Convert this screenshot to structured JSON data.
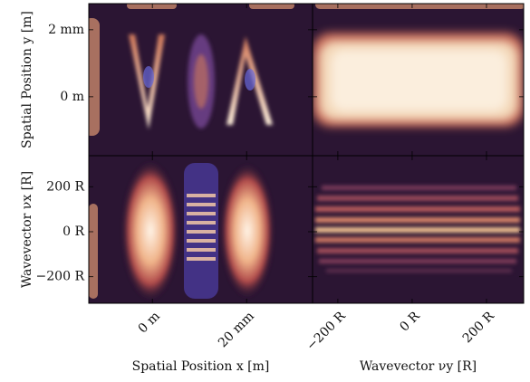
{
  "chart_data": [
    {
      "type": "heatmap",
      "ylabel": "Spatial Position y [m]",
      "ylim": [
        -0.00176,
        0.00278
      ],
      "yticks": [
        {
          "value": 0.002,
          "label": "2 mm"
        },
        {
          "value": 0,
          "label": "0 m"
        }
      ]
    },
    {
      "type": "heatmap"
    },
    {
      "type": "heatmap",
      "xlabel": "Spatial Position x [m]",
      "ylabel": "Wavevector νx [R]",
      "xlim": [
        -0.0135,
        0.034
      ],
      "ylim": [
        -318,
        338
      ],
      "xticks": [
        {
          "value": 0,
          "label": "0 m"
        },
        {
          "value": 0.02,
          "label": "20 mm"
        }
      ],
      "yticks": [
        {
          "value": 200,
          "label": "200 R"
        },
        {
          "value": 0,
          "label": "0 R"
        },
        {
          "value": -200,
          "label": "−200 R"
        }
      ]
    },
    {
      "type": "heatmap",
      "xlabel": "Wavevector νy [R]",
      "xlim": [
        -268,
        300
      ],
      "xticks": [
        {
          "value": -200,
          "label": "−200 R"
        },
        {
          "value": 0,
          "label": "0 R"
        },
        {
          "value": 200,
          "label": "200 R"
        }
      ]
    }
  ]
}
